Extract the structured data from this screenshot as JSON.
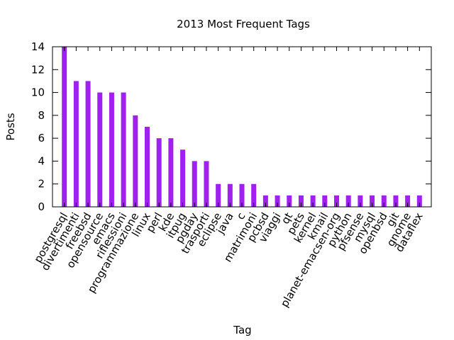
{
  "chart_data": {
    "type": "bar",
    "title": "2013 Most Frequent Tags",
    "xlabel": "Tag",
    "ylabel": "Posts",
    "ylim": [
      0,
      14
    ],
    "yticks": [
      0,
      2,
      4,
      6,
      8,
      10,
      12,
      14
    ],
    "grid": false,
    "bar_color": "#a020f0",
    "categories": [
      "postgresql",
      "divertimenti",
      "freebsd",
      "opensource",
      "emacs",
      "riflessioni",
      "programmazione",
      "linux",
      "perl",
      "kde",
      "itpug",
      "pgday",
      "trasporti",
      "eclipse",
      "java",
      "c",
      "matrimoni",
      "pcbsd",
      "viaggi",
      "qt",
      "pets",
      "kernel",
      "kmail",
      "planet-emacsen-org",
      "python",
      "pfsense",
      "mysql",
      "openbsd",
      "git",
      "gnome",
      "dataflex"
    ],
    "values": [
      14,
      11,
      11,
      10,
      10,
      10,
      8,
      7,
      6,
      6,
      5,
      4,
      4,
      2,
      2,
      2,
      2,
      1,
      1,
      1,
      1,
      1,
      1,
      1,
      1,
      1,
      1,
      1,
      1,
      1,
      1
    ]
  }
}
